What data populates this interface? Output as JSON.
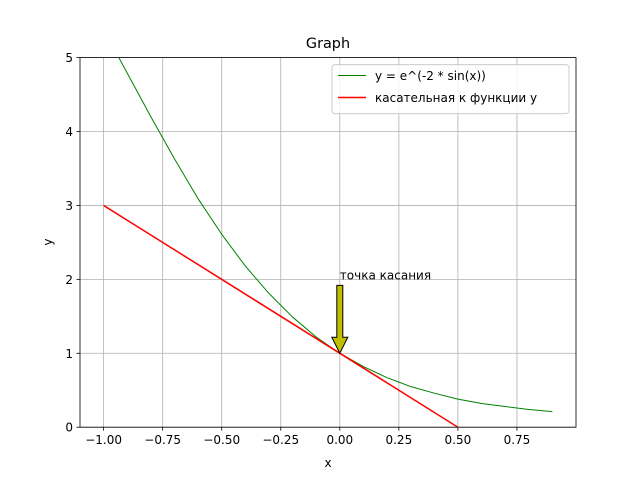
{
  "chart_data": {
    "type": "line",
    "title": "Graph",
    "xlabel": "x",
    "ylabel": "y",
    "xlim": [
      -1.1,
      1.0
    ],
    "ylim": [
      0,
      5
    ],
    "xticks": [
      -1.0,
      -0.75,
      -0.5,
      -0.25,
      0.0,
      0.25,
      0.5,
      0.75
    ],
    "xtick_labels": [
      "−1.00",
      "−0.75",
      "−0.50",
      "−0.25",
      "0.00",
      "0.25",
      "0.50",
      "0.75"
    ],
    "yticks": [
      0,
      1,
      2,
      3,
      4,
      5
    ],
    "ytick_labels": [
      "0",
      "1",
      "2",
      "3",
      "4",
      "5"
    ],
    "grid": true,
    "legend_position": "upper-right",
    "series": [
      {
        "name": "y = e^(-2 * sin(x))",
        "color": "#008000",
        "x": [
          -1.0,
          -0.9,
          -0.8,
          -0.7,
          -0.6,
          -0.5,
          -0.4,
          -0.3,
          -0.2,
          -0.1,
          0.0,
          0.1,
          0.2,
          0.3,
          0.4,
          0.5,
          0.6,
          0.7,
          0.8,
          0.9
        ],
        "y": [
          5.38,
          4.79,
          4.2,
          3.63,
          3.09,
          2.61,
          2.18,
          1.81,
          1.49,
          1.22,
          1.0,
          0.82,
          0.67,
          0.55,
          0.46,
          0.38,
          0.32,
          0.28,
          0.24,
          0.21
        ]
      },
      {
        "name": "касательная к функции y",
        "color": "#ff0000",
        "x": [
          -1.0,
          0.5
        ],
        "y": [
          3.0,
          0.0
        ]
      }
    ],
    "annotation": {
      "text": "точка касания",
      "arrow_color": "#bfbf00",
      "xy": [
        0.0,
        1.0
      ],
      "xytext": [
        0.0,
        2.0
      ]
    }
  }
}
